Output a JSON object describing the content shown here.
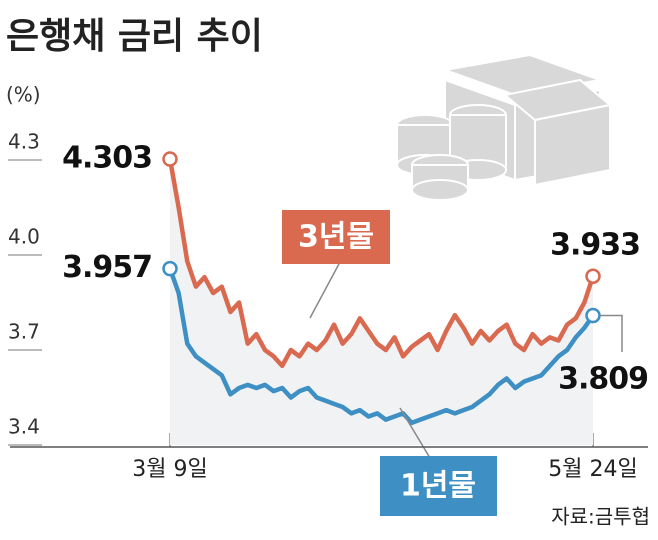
{
  "chart_data": {
    "type": "line",
    "title": "은행채 금리 추이",
    "y_unit": "(%)",
    "source": "자료:금투협",
    "categories": [
      "3월 9일",
      null,
      null,
      null,
      null,
      null,
      null,
      null,
      null,
      null,
      null,
      null,
      null,
      null,
      null,
      null,
      null,
      null,
      null,
      null,
      null,
      null,
      null,
      null,
      null,
      null,
      null,
      null,
      null,
      null,
      null,
      null,
      null,
      null,
      null,
      null,
      null,
      null,
      null,
      null,
      null,
      null,
      null,
      null,
      null,
      null,
      null,
      null,
      null,
      "5월 24일"
    ],
    "series": [
      {
        "name": "3년물",
        "color": "#d9694f",
        "values": [
          4.303,
          4.15,
          3.98,
          3.9,
          3.93,
          3.88,
          3.9,
          3.82,
          3.85,
          3.72,
          3.75,
          3.7,
          3.68,
          3.65,
          3.7,
          3.68,
          3.72,
          3.7,
          3.73,
          3.78,
          3.72,
          3.75,
          3.8,
          3.76,
          3.72,
          3.7,
          3.74,
          3.68,
          3.71,
          3.73,
          3.75,
          3.7,
          3.76,
          3.81,
          3.77,
          3.72,
          3.76,
          3.73,
          3.76,
          3.78,
          3.72,
          3.7,
          3.75,
          3.72,
          3.74,
          3.73,
          3.78,
          3.8,
          3.85,
          3.933
        ]
      },
      {
        "name": "1년물",
        "color": "#3d8fc4",
        "values": [
          3.957,
          3.88,
          3.72,
          3.68,
          3.66,
          3.64,
          3.62,
          3.56,
          3.58,
          3.59,
          3.58,
          3.59,
          3.57,
          3.58,
          3.55,
          3.57,
          3.58,
          3.55,
          3.54,
          3.53,
          3.52,
          3.5,
          3.51,
          3.49,
          3.5,
          3.48,
          3.49,
          3.5,
          3.47,
          3.48,
          3.49,
          3.5,
          3.51,
          3.5,
          3.51,
          3.52,
          3.54,
          3.56,
          3.59,
          3.61,
          3.58,
          3.6,
          3.61,
          3.62,
          3.65,
          3.68,
          3.7,
          3.74,
          3.77,
          3.809
        ]
      }
    ],
    "ylim": [
      3.4,
      4.3
    ],
    "yticks": [
      3.4,
      3.7,
      {
        "value": 4,
        "label": "4.0"
      },
      4.3
    ]
  }
}
